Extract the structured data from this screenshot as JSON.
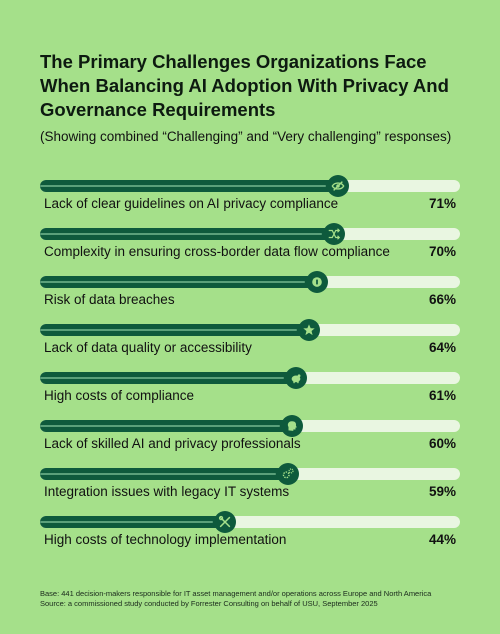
{
  "chart_data": {
    "type": "bar",
    "orientation": "horizontal",
    "title": "The Primary Challenges Organizations Face When Balancing AI Adoption With Privacy And Governance Requirements",
    "subtitle": "(Showing combined “Challenging” and “Very challenging” responses)",
    "xlim": [
      0,
      100
    ],
    "categories": [
      "Lack of clear guidelines on AI privacy compliance",
      "Complexity in ensuring cross-border data flow compliance",
      "Risk of data breaches",
      "Lack of data quality or accessibility",
      "High costs of compliance",
      "Lack of skilled AI and privacy professionals",
      "Integration issues with legacy IT systems",
      "High costs of technology implementation"
    ],
    "values": [
      71,
      70,
      66,
      64,
      61,
      60,
      59,
      44
    ],
    "value_labels": [
      "71%",
      "70%",
      "66%",
      "64%",
      "61%",
      "60%",
      "59%",
      "44%"
    ],
    "icons": [
      "eye-slash-icon",
      "shuffle-icon",
      "lock-icon",
      "star-icon",
      "piggy-bank-icon",
      "head-icon",
      "gears-icon",
      "tools-icon"
    ],
    "colors": {
      "background": "#a5e08a",
      "track": "#e9f6e1",
      "fill": "#0e5a3c",
      "stripe": "#5aa07a",
      "icon": "#a5e08a"
    }
  },
  "footer": {
    "base": "Base: 441 decision-makers responsible for IT asset management and/or operations across Europe and North America",
    "source": "Source: a commissioned study conducted by Forrester Consulting on behalf of USU, September 2025"
  }
}
